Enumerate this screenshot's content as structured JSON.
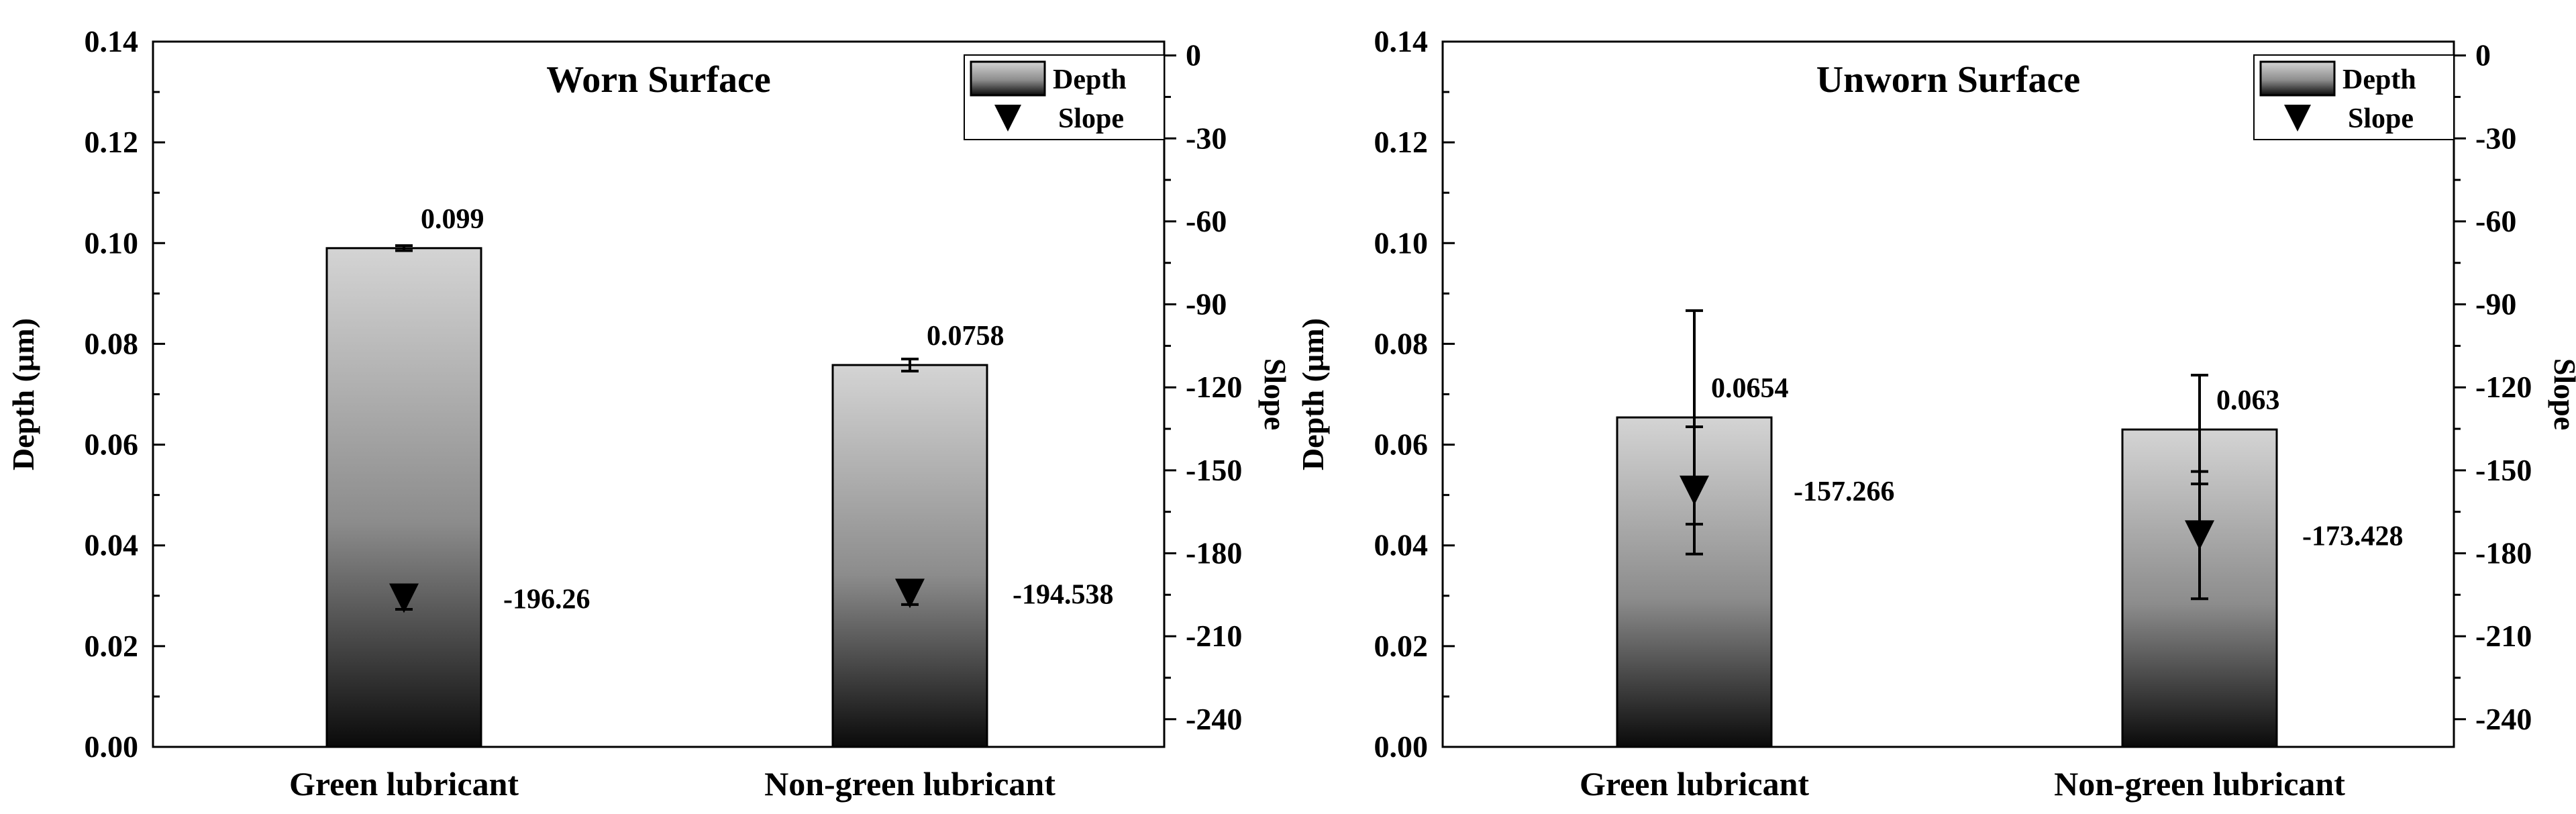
{
  "chart_data": [
    {
      "type": "bar",
      "title": "Worn Surface",
      "categories": [
        "Green lubricant",
        "Non-green lubricant"
      ],
      "ylabel": "Depth (µm)",
      "y2label": "Slope",
      "ylim": [
        0,
        0.14
      ],
      "y2lim": [
        -250,
        5
      ],
      "yticks": [
        "0.00",
        "0.02",
        "0.04",
        "0.06",
        "0.08",
        "0.10",
        "0.12",
        "0.14"
      ],
      "y2ticks": [
        "0",
        "-30",
        "-60",
        "-90",
        "-120",
        "-150",
        "-180",
        "-210",
        "-240"
      ],
      "legend": [
        {
          "name": "Depth",
          "symbol": "bar"
        },
        {
          "name": "Slope",
          "symbol": "triangle-down"
        }
      ],
      "legend_position": "top-right",
      "series": [
        {
          "name": "Depth",
          "values": [
            0.099,
            0.0758
          ],
          "errors": [
            0.0005,
            0.0012
          ],
          "labels": [
            "0.099",
            "0.0758"
          ]
        },
        {
          "name": "Slope",
          "values": [
            -196.26,
            -194.538
          ],
          "errors": [
            4,
            4
          ],
          "labels": [
            "-196.26",
            "-194.538"
          ]
        }
      ]
    },
    {
      "type": "bar",
      "title": "Unworn Surface",
      "categories": [
        "Green lubricant",
        "Non-green lubricant"
      ],
      "ylabel": "Depth (µm)",
      "y2label": "Slope",
      "ylim": [
        0,
        0.14
      ],
      "y2lim": [
        -250,
        5
      ],
      "yticks": [
        "0.00",
        "0.02",
        "0.04",
        "0.06",
        "0.08",
        "0.10",
        "0.12",
        "0.14"
      ],
      "y2ticks": [
        "0",
        "-30",
        "-60",
        "-90",
        "-120",
        "-150",
        "-180",
        "-210",
        "-240"
      ],
      "legend": [
        {
          "name": "Depth",
          "symbol": "bar"
        },
        {
          "name": "Slope",
          "symbol": "triangle-down"
        }
      ],
      "legend_position": "top-right",
      "series": [
        {
          "name": "Depth",
          "values": [
            0.0654,
            0.063
          ],
          "errors": [
            0.0212,
            0.0108
          ],
          "labels": [
            "0.0654",
            "0.063"
          ]
        },
        {
          "name": "Slope",
          "values": [
            -157.266,
            -173.428
          ],
          "errors": [
            23,
            23
          ],
          "labels": [
            "-157.266",
            "-173.428"
          ]
        }
      ]
    }
  ],
  "colors": {
    "bar_top": "#d4d4d4",
    "bar_mid": "#8c8c8c",
    "bar_bottom": "#0a0a0a",
    "axis": "#000000"
  }
}
